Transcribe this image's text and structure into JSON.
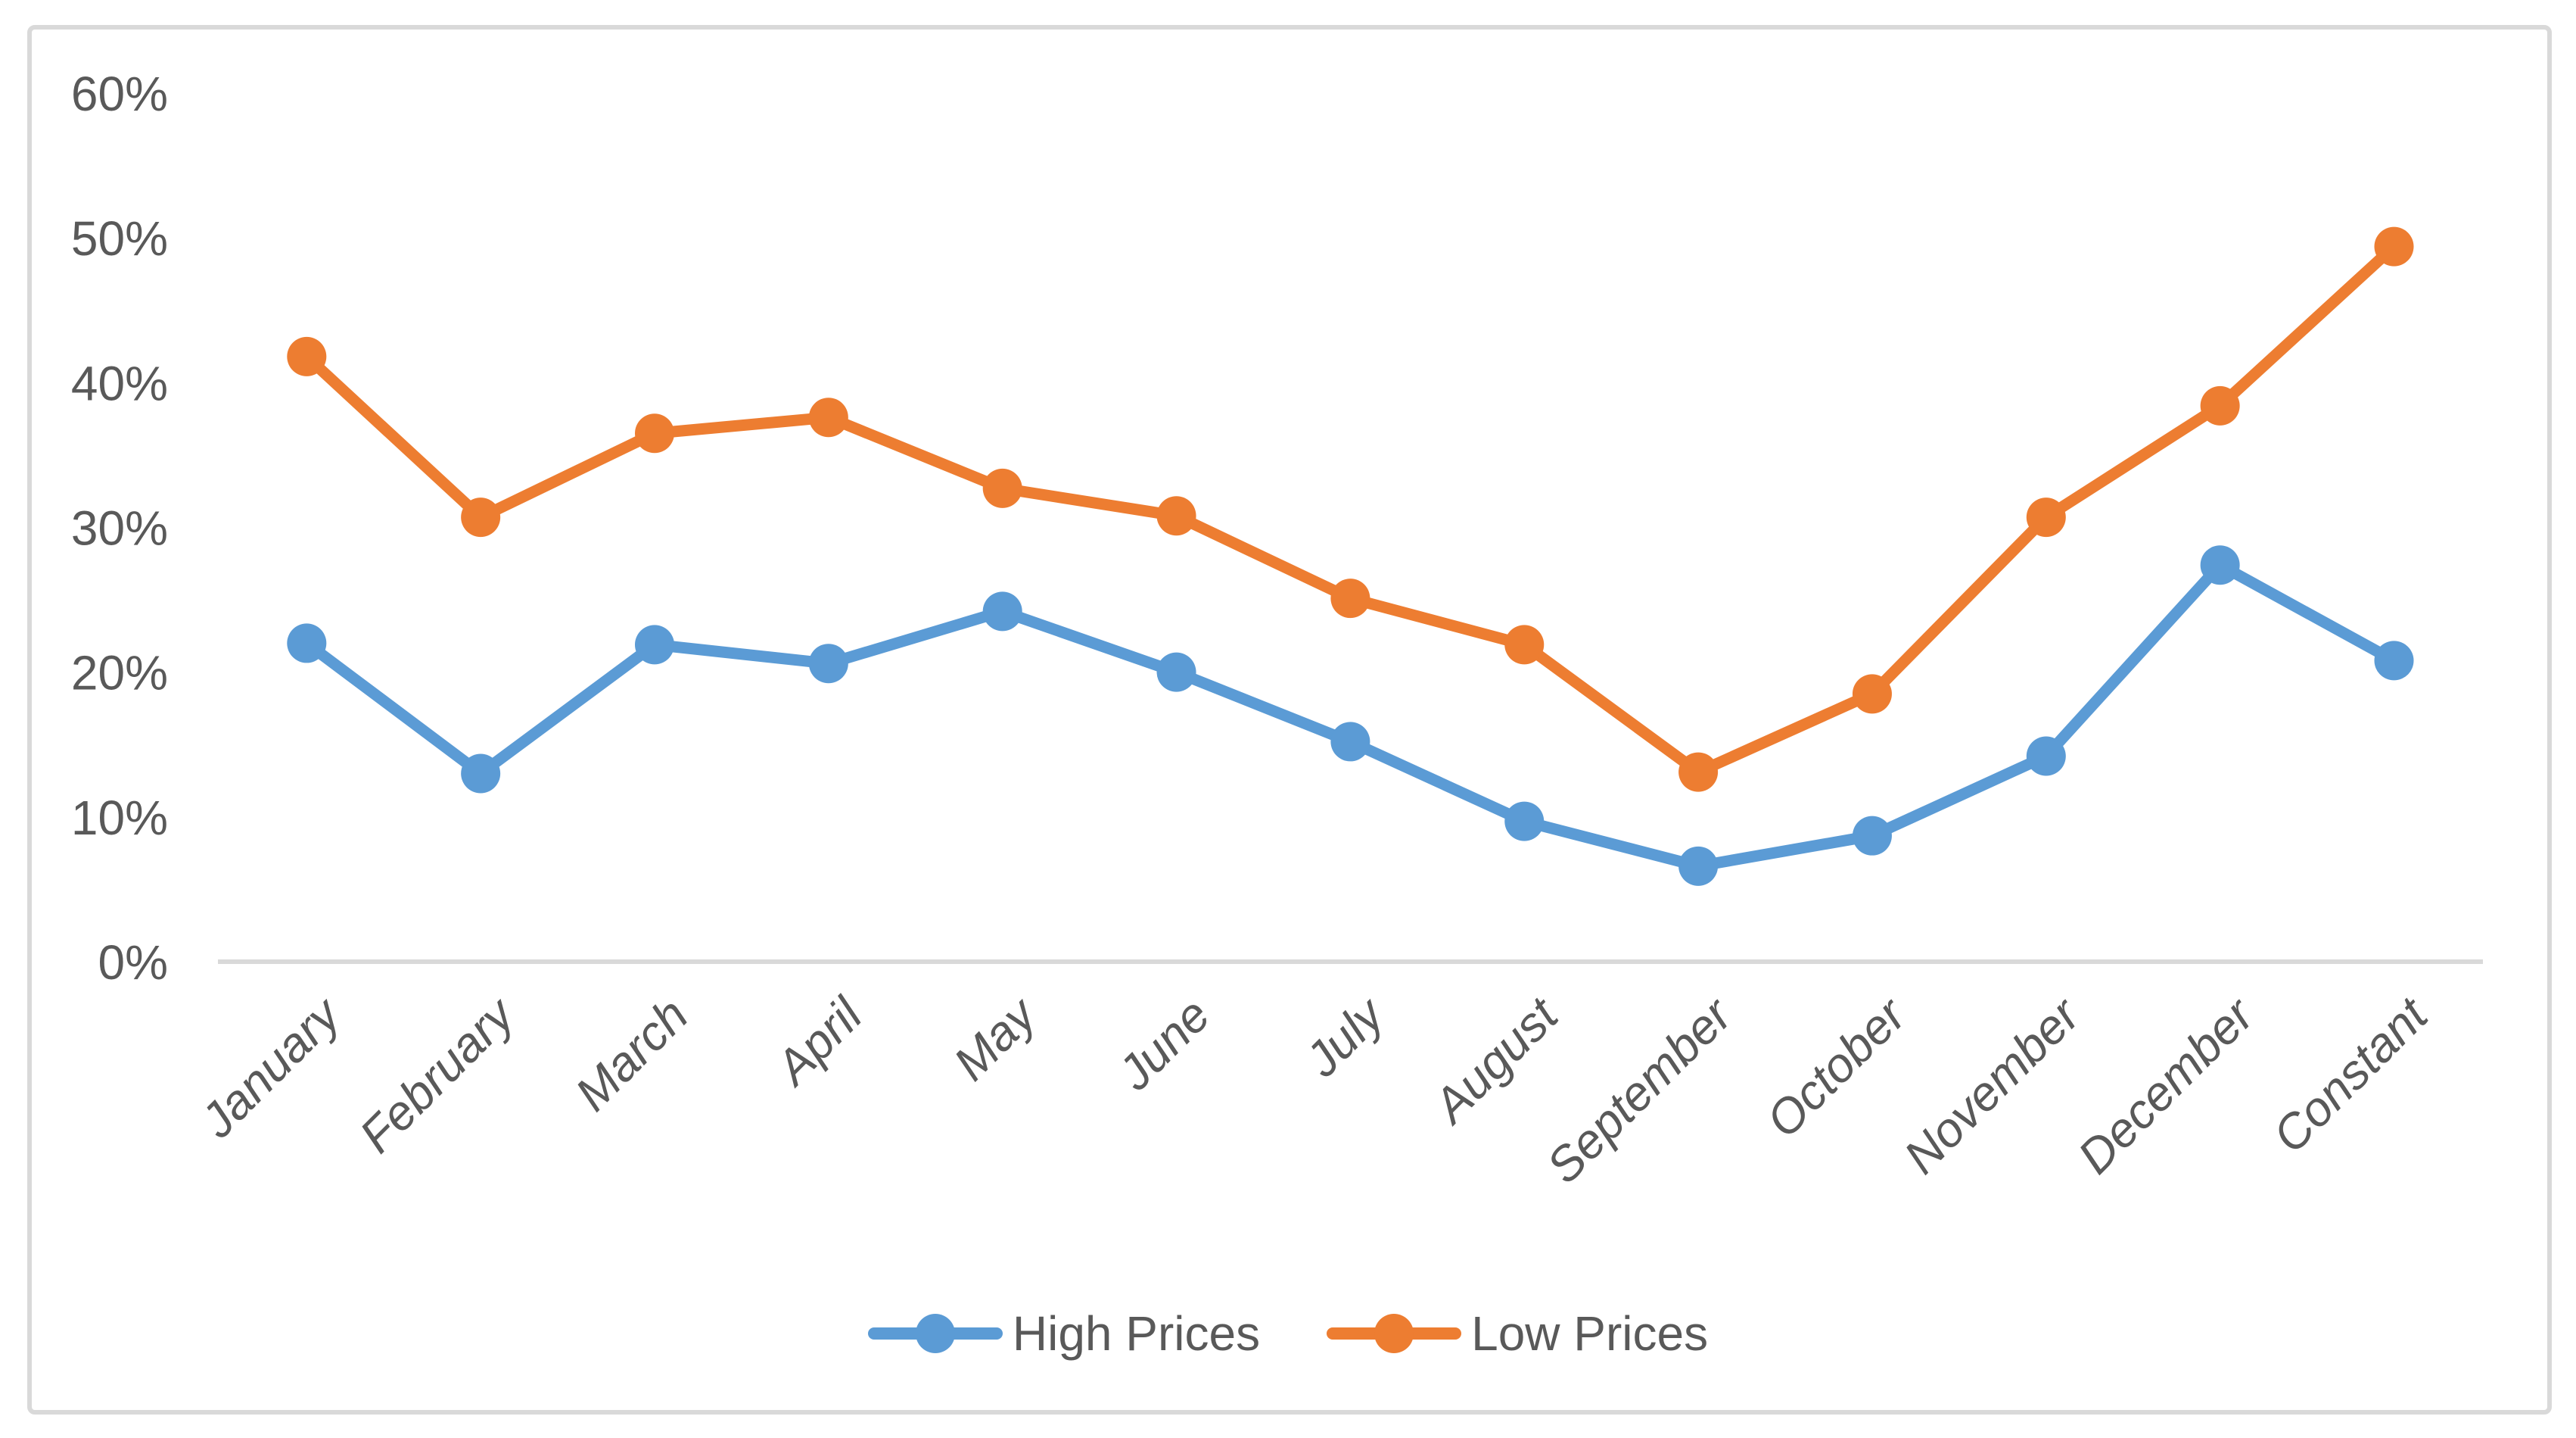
{
  "chart_data": {
    "type": "line",
    "categories": [
      "January",
      "February",
      "March",
      "April",
      "May",
      "June",
      "July",
      "August",
      "September",
      "October",
      "November",
      "December",
      "Constant"
    ],
    "series": [
      {
        "name": "High Prices",
        "color": "#5B9BD5",
        "values": [
          22.0,
          13.0,
          21.9,
          20.6,
          24.2,
          20.0,
          15.2,
          9.7,
          6.6,
          8.7,
          14.2,
          27.4,
          20.8
        ]
      },
      {
        "name": "Low Prices",
        "color": "#ED7D31",
        "values": [
          41.8,
          30.7,
          36.5,
          37.6,
          32.7,
          30.8,
          25.1,
          21.9,
          13.1,
          18.5,
          30.7,
          38.4,
          49.4
        ]
      }
    ],
    "title": "",
    "xlabel": "",
    "ylabel": "",
    "ylim": [
      0,
      60
    ],
    "y_ticks": [
      0,
      10,
      20,
      30,
      40,
      50,
      60
    ],
    "y_tick_suffix": "%",
    "y_tick_labels": [
      "0%",
      "10%",
      "20%",
      "30%",
      "40%",
      "50%",
      "60%"
    ],
    "grid": false,
    "legend_position": "bottom",
    "marker": "circle"
  },
  "colors": {
    "axis_text": "#595959",
    "axis_line": "#D9D9D9",
    "frame_border": "#D9D9D9",
    "background": "#FFFFFF"
  }
}
